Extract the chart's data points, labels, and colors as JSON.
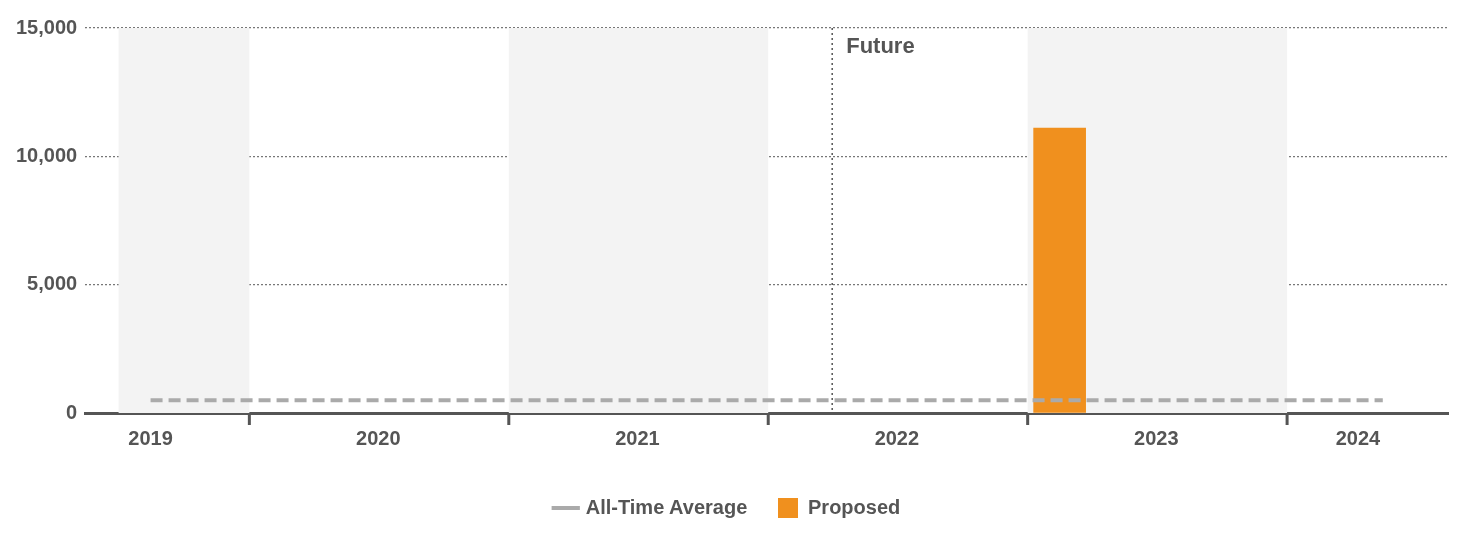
{
  "chart_data": {
    "type": "bar",
    "xlim": [
      "2019-05-15",
      "2024-08-15"
    ],
    "ylim": [
      0,
      15000
    ],
    "yticks": [
      0,
      {
        "value": 5000,
        "label": "5,000"
      },
      {
        "value": 10000,
        "label": "10,000"
      },
      {
        "value": 15000,
        "label": "15,000"
      }
    ],
    "xticks": [
      {
        "value": "2019-08-15",
        "label": "2019"
      },
      {
        "value": "2020-01-01",
        "label": null
      },
      {
        "value": "2020-07-01",
        "label": "2020"
      },
      {
        "value": "2021-01-01",
        "label": null
      },
      {
        "value": "2021-07-01",
        "label": "2021"
      },
      {
        "value": "2022-01-01",
        "label": null
      },
      {
        "value": "2022-07-01",
        "label": "2022"
      },
      {
        "value": "2023-01-01",
        "label": null
      },
      {
        "value": "2023-07-01",
        "label": "2023"
      },
      {
        "value": "2024-01-01",
        "label": null
      },
      {
        "value": "2024-04-10",
        "label": "2024"
      }
    ],
    "series": [
      {
        "name": "Proposed",
        "color": "#f0901e",
        "x": [
          "2023-02-15"
        ],
        "values": [
          11100
        ]
      },
      {
        "name": "All-Time Average",
        "type": "line",
        "color": "#aaaaaa",
        "line_style": "dashed",
        "marker": "none",
        "x": [
          "2019-08-15",
          "2024-05-15"
        ],
        "values": [
          500,
          500
        ]
      }
    ],
    "ref_lines": [
      {
        "axis": "x",
        "value": "2022-04-01",
        "label": "Future",
        "color": "#555555",
        "line_style": "dotted"
      }
    ],
    "bands": [
      {
        "axis": "x",
        "from": "2019-07-01",
        "to": "2020-01-01",
        "color": "#f3f3f3"
      },
      {
        "axis": "x",
        "from": "2021-01-01",
        "to": "2022-01-01",
        "color": "#f3f3f3"
      },
      {
        "axis": "x",
        "from": "2023-01-01",
        "to": "2024-01-01",
        "color": "#f3f3f3"
      }
    ],
    "grid": "y",
    "legend": "bottom"
  }
}
